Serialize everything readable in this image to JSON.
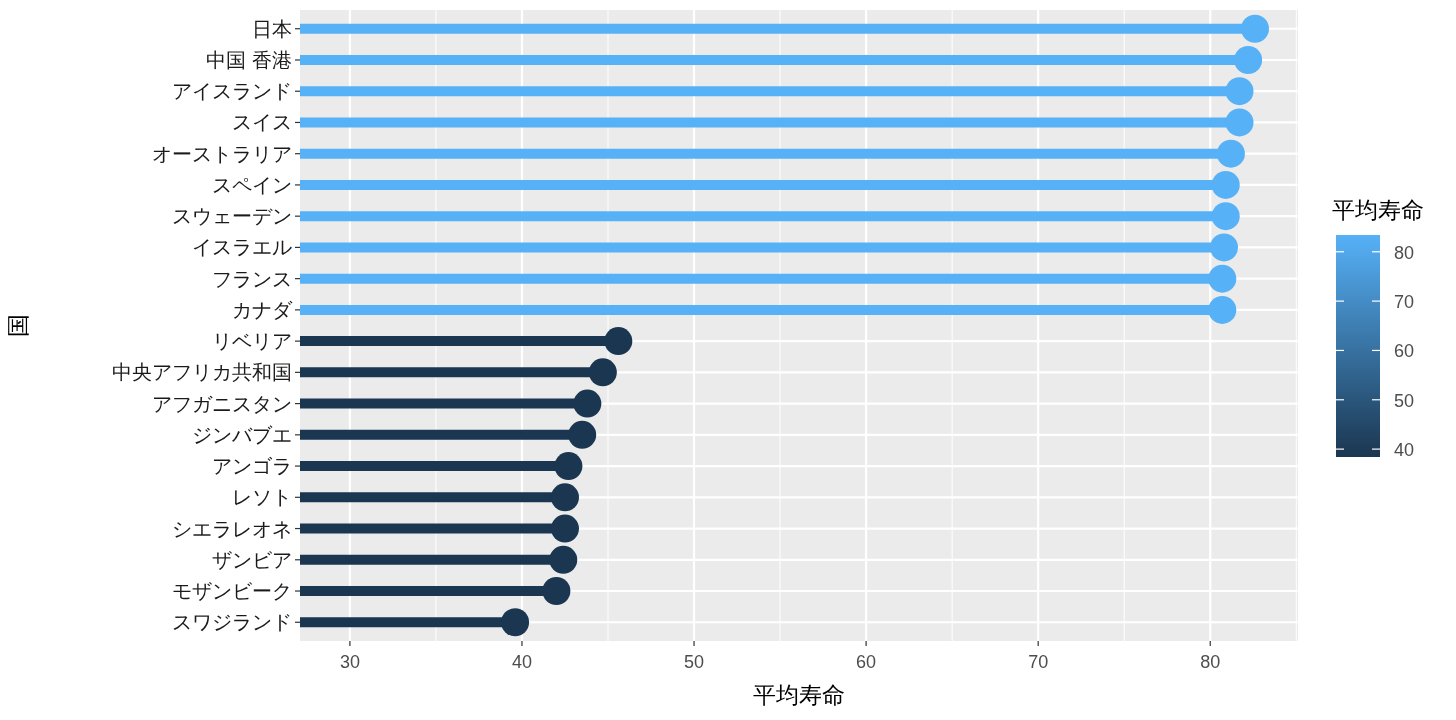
{
  "chart_data": {
    "type": "lollipop",
    "orientation": "horizontal",
    "xlabel": "平均寿命",
    "ylabel": "国",
    "clabel": "平均寿命",
    "categories": [
      "日本",
      "中国 香港",
      "アイスランド",
      "スイス",
      "オーストラリア",
      "スペイン",
      "スウェーデン",
      "イスラエル",
      "フランス",
      "カナダ",
      "リベリア",
      "中央アフリカ共和国",
      "アフガニスタン",
      "ジンバブエ",
      "アンゴラ",
      "レソト",
      "シエラレオネ",
      "ザンビア",
      "モザンビーク",
      "スワジランド"
    ],
    "values": [
      82.6,
      82.2,
      81.7,
      81.7,
      81.2,
      80.9,
      80.9,
      80.8,
      80.7,
      80.7,
      45.6,
      44.7,
      43.8,
      43.5,
      42.7,
      42.5,
      42.5,
      42.4,
      42.0,
      39.6
    ],
    "colors": [
      "#56b1f7",
      "#56b1f7",
      "#56b1f7",
      "#56b1f7",
      "#56b1f7",
      "#56b1f7",
      "#56b1f7",
      "#56b1f7",
      "#56b1f7",
      "#56b1f7",
      "#1b3650",
      "#1b3650",
      "#1b3650",
      "#1b3650",
      "#1b3650",
      "#1b3650",
      "#1b3650",
      "#1b3650",
      "#1b3650",
      "#1b3650"
    ],
    "xlim": [
      27.1,
      85.1
    ],
    "xticks": [
      30,
      40,
      50,
      60,
      70,
      80
    ],
    "clim": [
      38.4,
      83.4
    ],
    "cticks": [
      40,
      50,
      60,
      70,
      80
    ],
    "grid": true,
    "marker": "circle"
  }
}
